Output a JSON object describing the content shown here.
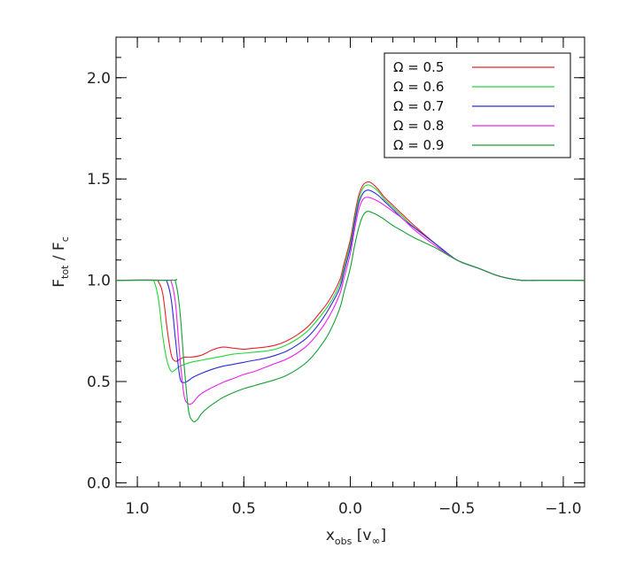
{
  "chart_data": {
    "type": "line",
    "title": "",
    "xlabel": {
      "main": "x",
      "sub": "obs",
      "unit": "[v",
      "unit_sub": "∞",
      "unit_close": "]"
    },
    "ylabel": {
      "main": "F",
      "sub1": "tot",
      "mid": " / F",
      "sub2": "c"
    },
    "xlim": [
      1.1,
      -1.1
    ],
    "ylim": [
      -0.02,
      2.2
    ],
    "x_ticks": [
      1.0,
      0.5,
      0.0,
      -0.5,
      -1.0
    ],
    "x_tick_labels": [
      "1.0",
      "0.5",
      "0.0",
      "−0.5",
      "−1.0"
    ],
    "y_ticks": [
      0.0,
      0.5,
      1.0,
      1.5,
      2.0
    ],
    "y_tick_labels": [
      "0.0",
      "0.5",
      "1.0",
      "1.5",
      "2.0"
    ],
    "grid": false,
    "legend_position": "top-right",
    "series": [
      {
        "name": "Ω = 0.5",
        "color": "#e8202a",
        "x": [
          1.1,
          0.92,
          0.9,
          0.88,
          0.86,
          0.84,
          0.82,
          0.8,
          0.78,
          0.75,
          0.7,
          0.65,
          0.6,
          0.55,
          0.5,
          0.45,
          0.4,
          0.35,
          0.3,
          0.25,
          0.2,
          0.15,
          0.1,
          0.05,
          0.03,
          0.0,
          -0.02,
          -0.04,
          -0.06,
          -0.08,
          -0.1,
          -0.13,
          -0.16,
          -0.2,
          -0.25,
          -0.3,
          -0.4,
          -0.5,
          -0.6,
          -0.7,
          -0.8,
          -0.88,
          -0.92,
          -1.1
        ],
        "y": [
          1.0,
          1.0,
          0.99,
          0.93,
          0.76,
          0.63,
          0.6,
          0.61,
          0.62,
          0.62,
          0.63,
          0.655,
          0.67,
          0.665,
          0.66,
          0.665,
          0.67,
          0.68,
          0.7,
          0.73,
          0.77,
          0.83,
          0.9,
          1.0,
          1.08,
          1.2,
          1.32,
          1.42,
          1.47,
          1.485,
          1.48,
          1.45,
          1.41,
          1.37,
          1.32,
          1.27,
          1.18,
          1.1,
          1.06,
          1.02,
          1.0,
          1.0,
          1.0,
          1.0
        ]
      },
      {
        "name": "Ω = 0.6",
        "color": "#22d63a",
        "x": [
          1.1,
          0.94,
          0.92,
          0.9,
          0.88,
          0.86,
          0.84,
          0.82,
          0.8,
          0.75,
          0.7,
          0.65,
          0.6,
          0.55,
          0.5,
          0.45,
          0.4,
          0.35,
          0.3,
          0.25,
          0.2,
          0.15,
          0.1,
          0.05,
          0.03,
          0.0,
          -0.02,
          -0.04,
          -0.06,
          -0.08,
          -0.1,
          -0.13,
          -0.16,
          -0.2,
          -0.25,
          -0.3,
          -0.4,
          -0.5,
          -0.6,
          -0.7,
          -0.8,
          -0.88,
          -0.92,
          -1.1
        ],
        "y": [
          1.0,
          1.0,
          0.99,
          0.9,
          0.72,
          0.6,
          0.55,
          0.56,
          0.575,
          0.595,
          0.605,
          0.615,
          0.625,
          0.635,
          0.64,
          0.645,
          0.65,
          0.66,
          0.68,
          0.71,
          0.75,
          0.81,
          0.88,
          0.98,
          1.06,
          1.18,
          1.3,
          1.4,
          1.455,
          1.47,
          1.465,
          1.44,
          1.4,
          1.36,
          1.31,
          1.26,
          1.18,
          1.1,
          1.06,
          1.02,
          1.0,
          1.0,
          1.0,
          1.0
        ]
      },
      {
        "name": "Ω = 0.7",
        "color": "#2a2ad8",
        "x": [
          1.1,
          0.88,
          0.86,
          0.84,
          0.82,
          0.8,
          0.78,
          0.76,
          0.74,
          0.7,
          0.65,
          0.6,
          0.55,
          0.5,
          0.45,
          0.4,
          0.35,
          0.3,
          0.25,
          0.2,
          0.15,
          0.1,
          0.05,
          0.03,
          0.0,
          -0.02,
          -0.04,
          -0.06,
          -0.08,
          -0.1,
          -0.13,
          -0.16,
          -0.2,
          -0.25,
          -0.3,
          -0.4,
          -0.5,
          -0.6,
          -0.7,
          -0.8,
          -0.88,
          -0.92,
          -1.1
        ],
        "y": [
          1.0,
          1.0,
          0.99,
          0.9,
          0.7,
          0.52,
          0.495,
          0.505,
          0.52,
          0.54,
          0.56,
          0.575,
          0.585,
          0.595,
          0.605,
          0.615,
          0.63,
          0.65,
          0.68,
          0.72,
          0.78,
          0.86,
          0.96,
          1.04,
          1.16,
          1.28,
          1.38,
          1.43,
          1.445,
          1.44,
          1.42,
          1.39,
          1.35,
          1.3,
          1.26,
          1.18,
          1.1,
          1.06,
          1.02,
          1.0,
          1.0,
          1.0,
          1.0
        ]
      },
      {
        "name": "Ω = 0.8",
        "color": "#ee22ee",
        "x": [
          1.1,
          0.86,
          0.84,
          0.82,
          0.8,
          0.78,
          0.76,
          0.74,
          0.72,
          0.7,
          0.65,
          0.6,
          0.55,
          0.5,
          0.45,
          0.4,
          0.35,
          0.3,
          0.25,
          0.2,
          0.15,
          0.1,
          0.05,
          0.03,
          0.0,
          -0.02,
          -0.04,
          -0.06,
          -0.08,
          -0.1,
          -0.13,
          -0.16,
          -0.2,
          -0.25,
          -0.3,
          -0.4,
          -0.5,
          -0.6,
          -0.7,
          -0.8,
          -0.88,
          -0.92,
          -1.1
        ],
        "y": [
          1.0,
          1.0,
          0.99,
          0.88,
          0.62,
          0.43,
          0.39,
          0.395,
          0.42,
          0.44,
          0.47,
          0.495,
          0.515,
          0.535,
          0.55,
          0.57,
          0.59,
          0.61,
          0.64,
          0.68,
          0.74,
          0.82,
          0.93,
          1.01,
          1.13,
          1.25,
          1.35,
          1.4,
          1.41,
          1.405,
          1.39,
          1.37,
          1.34,
          1.3,
          1.25,
          1.17,
          1.1,
          1.06,
          1.02,
          1.0,
          1.0,
          1.0,
          1.0
        ]
      },
      {
        "name": "Ω = 0.9",
        "color": "#14a032",
        "x": [
          1.1,
          0.84,
          0.82,
          0.8,
          0.78,
          0.76,
          0.74,
          0.72,
          0.7,
          0.67,
          0.63,
          0.6,
          0.55,
          0.5,
          0.45,
          0.4,
          0.35,
          0.3,
          0.25,
          0.2,
          0.15,
          0.1,
          0.05,
          0.03,
          0.0,
          -0.02,
          -0.04,
          -0.06,
          -0.08,
          -0.1,
          -0.13,
          -0.16,
          -0.2,
          -0.25,
          -0.3,
          -0.4,
          -0.5,
          -0.6,
          -0.7,
          -0.8,
          -0.88,
          -0.92,
          -1.1
        ],
        "y": [
          1.0,
          1.0,
          0.99,
          0.85,
          0.58,
          0.36,
          0.305,
          0.31,
          0.34,
          0.37,
          0.4,
          0.42,
          0.445,
          0.465,
          0.48,
          0.495,
          0.51,
          0.53,
          0.56,
          0.6,
          0.66,
          0.74,
          0.86,
          0.94,
          1.06,
          1.17,
          1.26,
          1.32,
          1.34,
          1.335,
          1.32,
          1.3,
          1.27,
          1.24,
          1.21,
          1.16,
          1.1,
          1.06,
          1.02,
          1.0,
          1.0,
          1.0,
          1.0
        ]
      }
    ]
  }
}
